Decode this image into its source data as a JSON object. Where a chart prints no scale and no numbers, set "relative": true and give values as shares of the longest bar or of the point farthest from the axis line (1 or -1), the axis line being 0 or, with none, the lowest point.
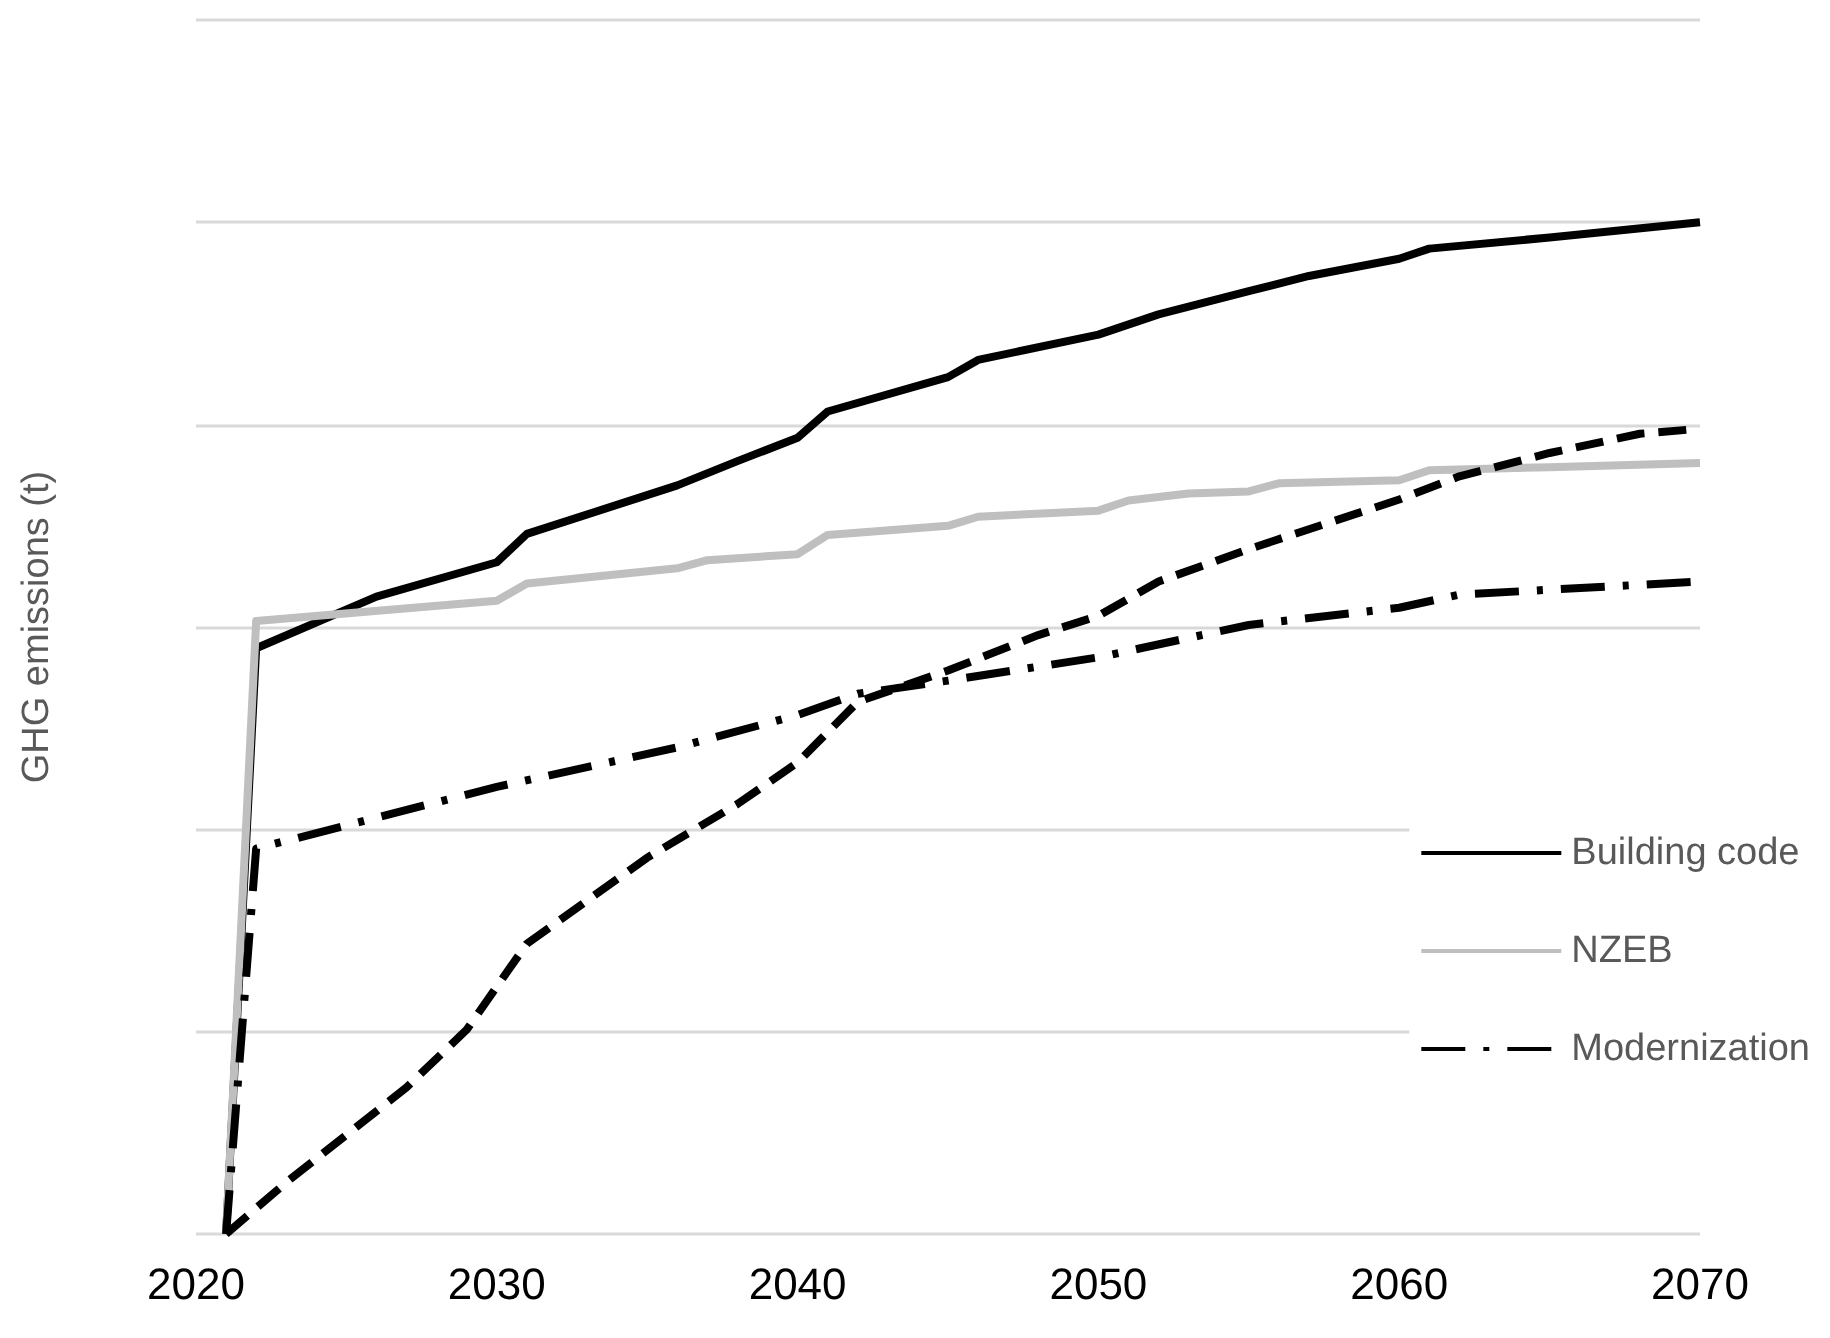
{
  "chart_data": {
    "type": "line",
    "ylabel": "GHG emissions (t)",
    "relative": true,
    "xlim": [
      2020,
      2070
    ],
    "xticks": [
      2020,
      2030,
      2040,
      2050,
      2060,
      2070
    ],
    "grid": "y",
    "legend": "bottom right",
    "marker": "none",
    "series": [
      {
        "name": "Building code",
        "color": "#000000",
        "line_style": "solid",
        "x": [
          2021,
          2022,
          2026,
          2030,
          2031,
          2036,
          2038,
          2040,
          2041,
          2045,
          2046,
          2050,
          2052,
          2055,
          2057,
          2060,
          2061,
          2065,
          2070
        ],
        "values": [
          0,
          0.579,
          0.63,
          0.664,
          0.692,
          0.74,
          0.764,
          0.787,
          0.813,
          0.847,
          0.864,
          0.889,
          0.909,
          0.932,
          0.947,
          0.964,
          0.974,
          0.985,
          1
        ]
      },
      {
        "name": "NZEB",
        "color": "#bfbfbf",
        "line_style": "solid",
        "x": [
          2021,
          2022,
          2030,
          2031,
          2036,
          2037,
          2040,
          2041,
          2045,
          2046,
          2050,
          2051,
          2053,
          2055,
          2056,
          2060,
          2061,
          2065,
          2070
        ],
        "values": [
          0,
          0.606,
          0.626,
          0.643,
          0.658,
          0.666,
          0.672,
          0.691,
          0.7,
          0.709,
          0.715,
          0.725,
          0.732,
          0.734,
          0.742,
          0.745,
          0.755,
          0.758,
          0.762
        ]
      },
      {
        "name": "Modernization",
        "color": "#000000",
        "line_style": "dashdot",
        "x": [
          2021,
          2022,
          2030,
          2036,
          2040,
          2042,
          2045,
          2050,
          2055,
          2060,
          2062,
          2070
        ],
        "values": [
          0,
          0.381,
          0.442,
          0.481,
          0.513,
          0.534,
          0.547,
          0.57,
          0.602,
          0.619,
          0.632,
          0.645
        ]
      },
      {
        "color": "#000000",
        "line_style": "dashed",
        "x": [
          2021,
          2023,
          2025,
          2027,
          2029,
          2031,
          2035,
          2038,
          2040,
          2042,
          2045,
          2048,
          2050,
          2052,
          2055,
          2060,
          2062,
          2065,
          2068,
          2070
        ],
        "values": [
          0,
          0.051,
          0.098,
          0.145,
          0.202,
          0.287,
          0.372,
          0.425,
          0.466,
          0.526,
          0.557,
          0.592,
          0.611,
          0.645,
          0.677,
          0.726,
          0.749,
          0.772,
          0.791,
          0.796
        ]
      }
    ]
  }
}
